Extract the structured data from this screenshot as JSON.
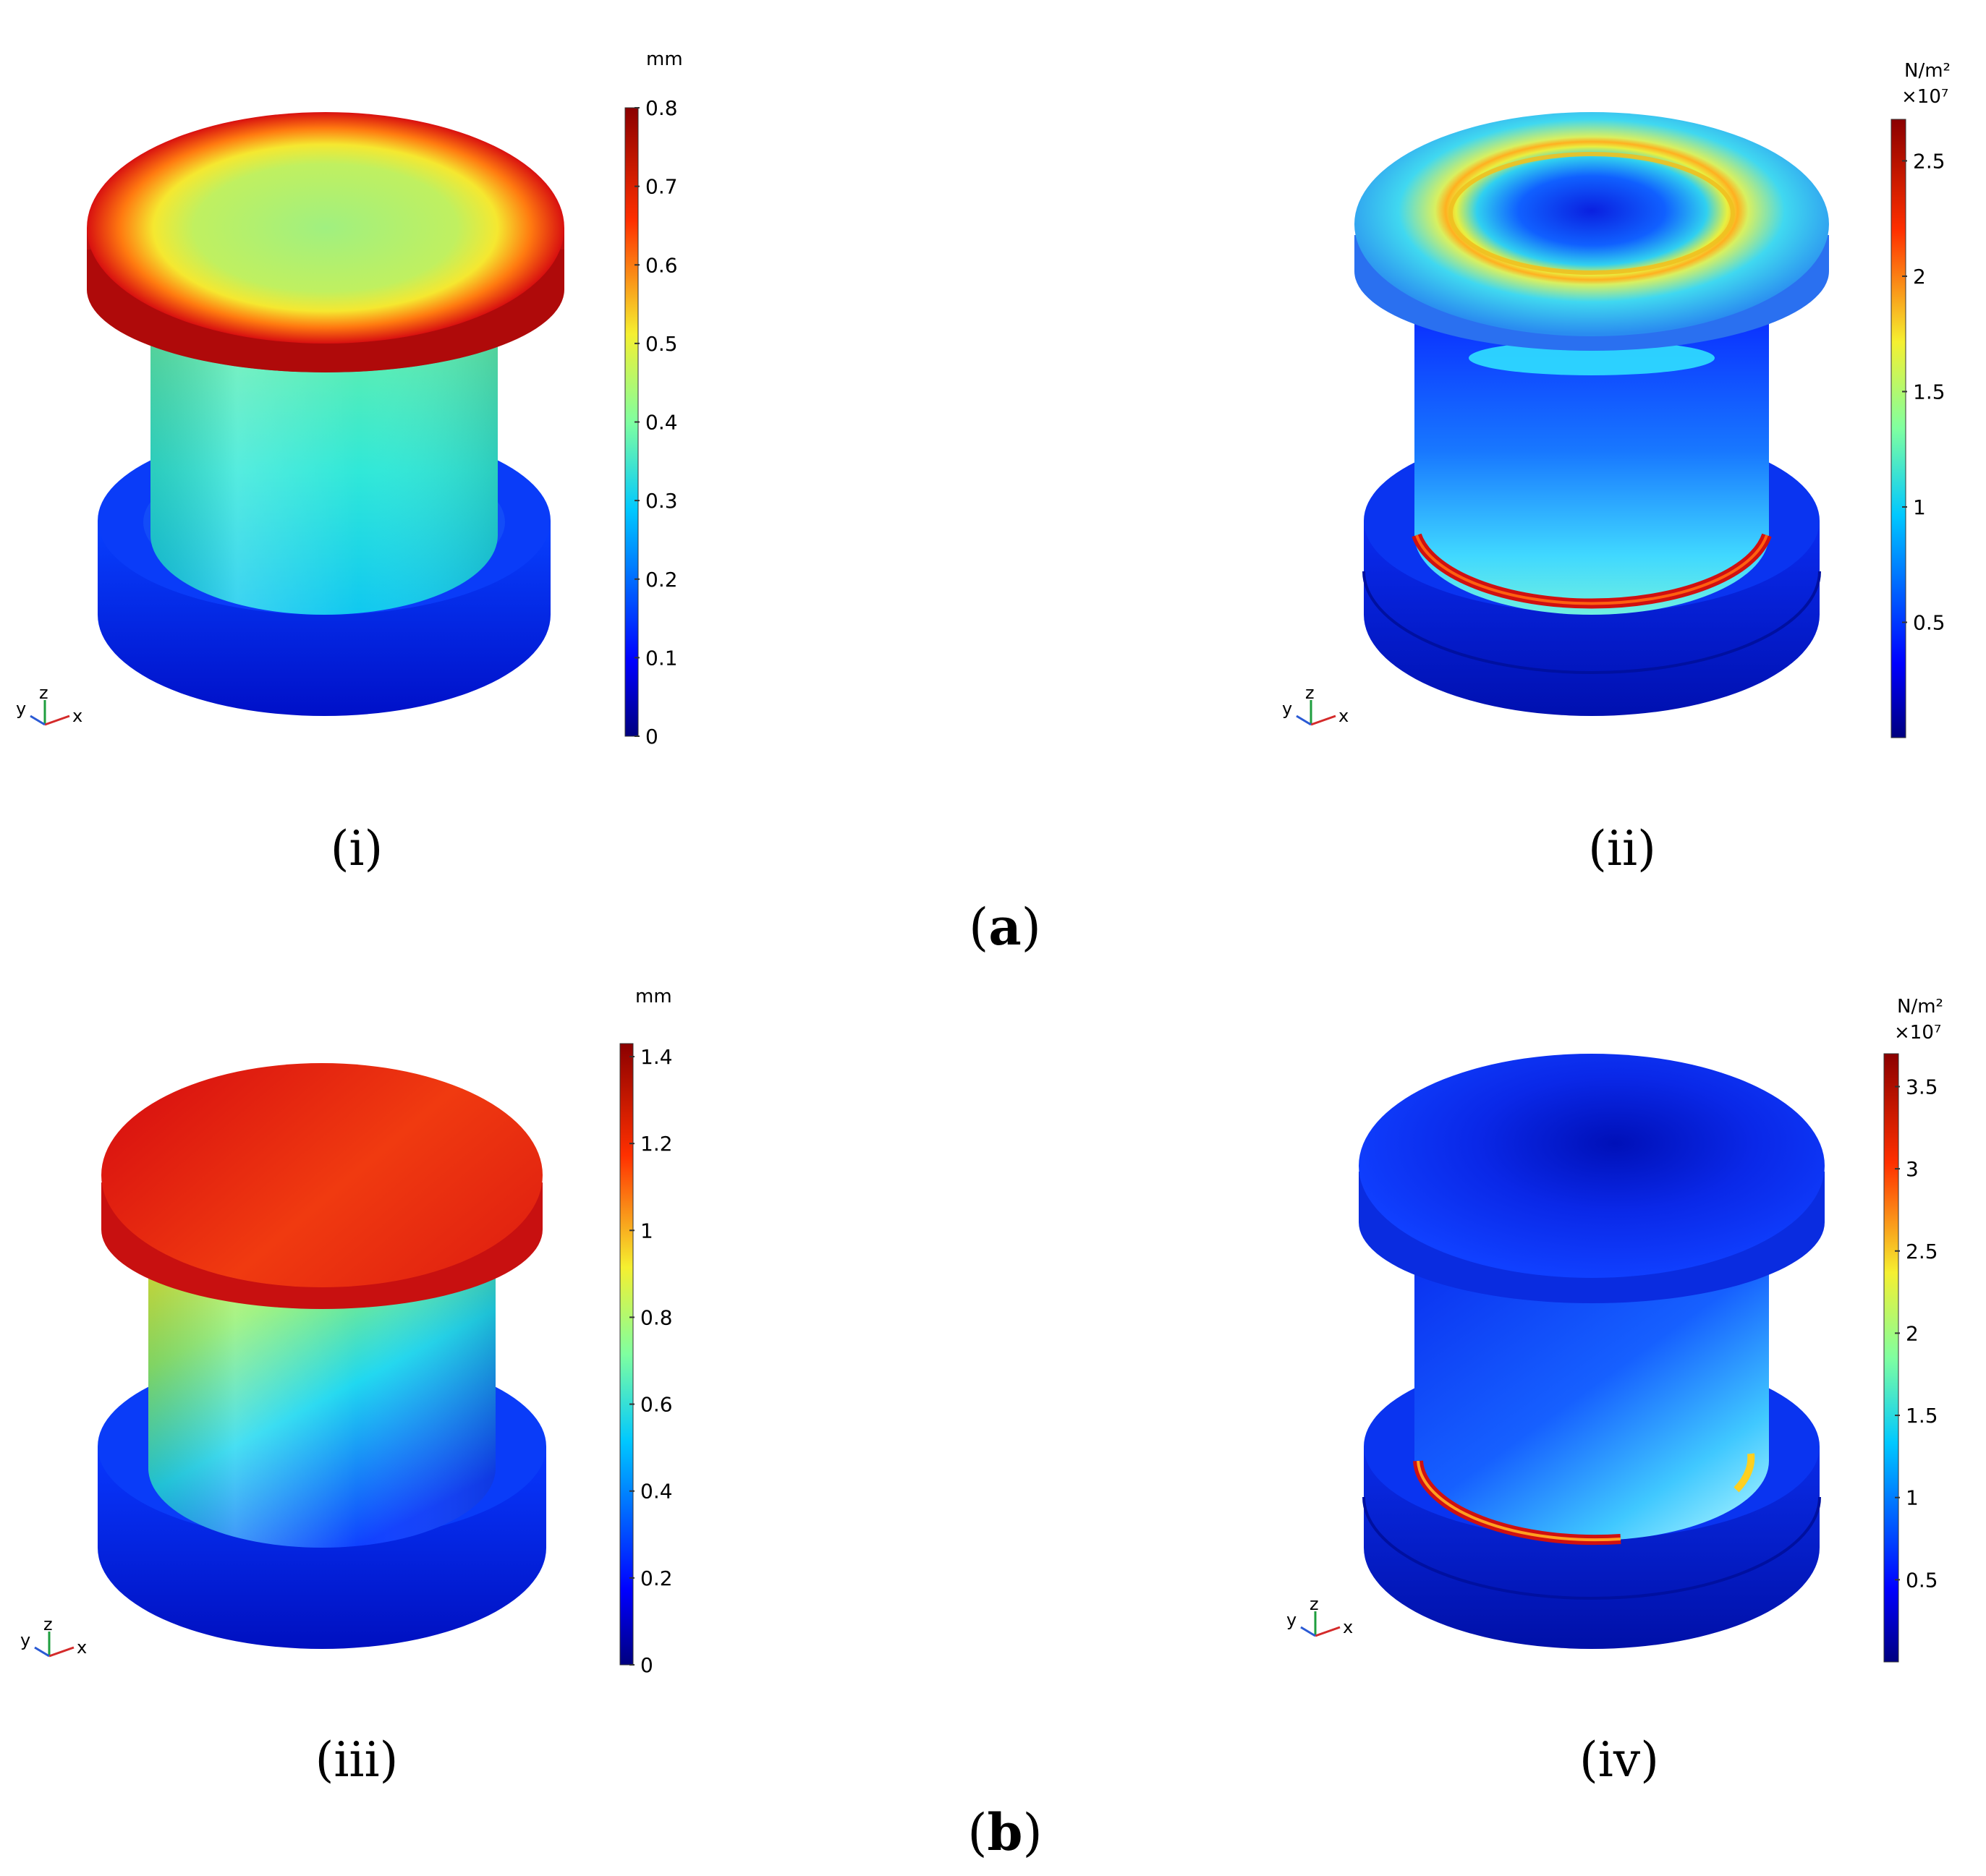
{
  "panels": [
    {
      "id": "i",
      "caption": "(i)",
      "field": "displacement",
      "unit": "mm",
      "exponent": "",
      "colorbar_min": 0,
      "colorbar_max": 0.8,
      "ticks": [
        "0",
        "0.1",
        "0.2",
        "0.3",
        "0.4",
        "0.5",
        "0.6",
        "0.7",
        "0.8"
      ]
    },
    {
      "id": "ii",
      "caption": "(ii)",
      "field": "stress",
      "unit": "N/m²",
      "exponent": "×10⁷",
      "colorbar_min": 0,
      "colorbar_max": 2.68,
      "ticks": [
        "0.5",
        "1",
        "1.5",
        "2",
        "2.5"
      ]
    },
    {
      "id": "iii",
      "caption": "(iii)",
      "field": "displacement",
      "unit": "mm",
      "exponent": "",
      "colorbar_min": 0,
      "colorbar_max": 1.43,
      "ticks": [
        "0",
        "0.2",
        "0.4",
        "0.6",
        "0.8",
        "1",
        "1.2",
        "1.4"
      ]
    },
    {
      "id": "iv",
      "caption": "(iv)",
      "field": "stress",
      "unit": "N/m²",
      "exponent": "×10⁷",
      "colorbar_min": 0,
      "colorbar_max": 3.7,
      "ticks": [
        "0.5",
        "1",
        "1.5",
        "2",
        "2.5",
        "3",
        "3.5"
      ]
    }
  ],
  "group_labels": {
    "a": "a",
    "b": "b"
  },
  "axis_triad": {
    "y": "y",
    "z": "z",
    "x": "x"
  },
  "colors": {
    "jet_dark_blue": "#00007f",
    "jet_blue": "#0030ff",
    "jet_cyan": "#20e0f0",
    "jet_green": "#7fffa0",
    "jet_yellow": "#f5f030",
    "jet_orange": "#ff8c00",
    "jet_red": "#e81010",
    "jet_dark_red": "#8b0000"
  }
}
